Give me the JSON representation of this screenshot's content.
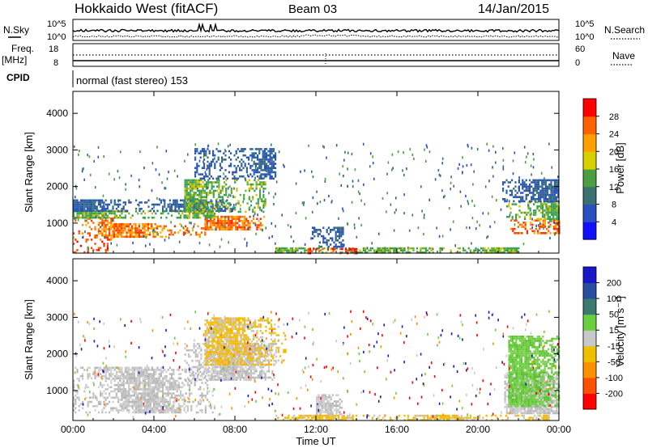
{
  "header": {
    "station": "Hokkaido West (fitACF)",
    "beam": "Beam 03",
    "date": "14/Jan/2015"
  },
  "noise_panel": {
    "left_label": "N.Sky",
    "right_label": "N.Search",
    "left_ticks": [
      "10^5",
      "10^0"
    ],
    "right_ticks": [
      "10^5",
      "10^0"
    ]
  },
  "freq_panel": {
    "left_label_line1": "Freq.",
    "left_label_line2": "[MHz]",
    "right_label": "Nave",
    "left_ticks": [
      "18",
      "8"
    ],
    "right_ticks": [
      "60",
      "0"
    ]
  },
  "cpid": {
    "label": "CPID",
    "value": "normal (fast stereo) 153"
  },
  "chart_data": [
    {
      "type": "heatmap",
      "name": "power",
      "ylabel": "Slant Range [km]",
      "yticks": [
        1000,
        2000,
        3000,
        4000
      ],
      "ylim": [
        180,
        4600
      ],
      "xlim_hours": [
        0,
        24
      ],
      "colorbar": {
        "label": "Power [dB]",
        "ticks": [
          4,
          8,
          12,
          16,
          20,
          24,
          28
        ],
        "range": [
          0,
          32
        ],
        "colors": [
          "#1010ff",
          "#2a4fc0",
          "#3a7070",
          "#4aa040",
          "#d8d000",
          "#ffa000",
          "#ff6000",
          "#ff0000"
        ]
      },
      "regions": [
        {
          "t0": 0.0,
          "t1": 1.7,
          "r0": 180,
          "r1": 520,
          "level": "red"
        },
        {
          "t0": 0.0,
          "t1": 2.0,
          "r0": 520,
          "r1": 1150,
          "level": "orange"
        },
        {
          "t0": 2.0,
          "t1": 6.5,
          "r0": 600,
          "r1": 1000,
          "level": "orange"
        },
        {
          "t0": 6.5,
          "t1": 9.5,
          "r0": 800,
          "r1": 1200,
          "level": "orange"
        },
        {
          "t0": 0.0,
          "t1": 7.0,
          "r0": 1150,
          "r1": 1350,
          "level": "green"
        },
        {
          "t0": 0.0,
          "t1": 8.0,
          "r0": 1350,
          "r1": 1650,
          "level": "blue"
        },
        {
          "t0": 5.5,
          "t1": 9.5,
          "r0": 1300,
          "r1": 2200,
          "level": "green"
        },
        {
          "t0": 6.0,
          "t1": 10.0,
          "r0": 2200,
          "r1": 3050,
          "level": "blue"
        },
        {
          "t0": 10.0,
          "t1": 22.0,
          "r0": 200,
          "r1": 340,
          "level": "green"
        },
        {
          "t0": 11.5,
          "t1": 14.0,
          "r0": 200,
          "r1": 320,
          "level": "red"
        },
        {
          "t0": 11.8,
          "t1": 13.3,
          "r0": 350,
          "r1": 900,
          "level": "blue"
        },
        {
          "t0": 21.6,
          "t1": 24.0,
          "r0": 700,
          "r1": 1100,
          "level": "orange"
        },
        {
          "t0": 21.4,
          "t1": 24.0,
          "r0": 1100,
          "r1": 1600,
          "level": "green"
        },
        {
          "t0": 21.2,
          "t1": 24.0,
          "r0": 1600,
          "r1": 2200,
          "level": "blue"
        }
      ]
    },
    {
      "type": "heatmap",
      "name": "velocity",
      "ylabel": "Slant Range [km]",
      "xlabel": "Time UT",
      "yticks": [
        1000,
        2000,
        3000,
        4000
      ],
      "ylim": [
        180,
        4600
      ],
      "xlim_hours": [
        0,
        24
      ],
      "xticks": [
        "00:00",
        "04:00",
        "08:00",
        "12:00",
        "16:00",
        "20:00",
        "00:00"
      ],
      "colorbar": {
        "label": "Velocity [m s⁻¹]",
        "ticks": [
          200,
          100,
          50,
          15,
          -15,
          -50,
          -100,
          -200
        ],
        "colors": [
          "#1818c8",
          "#2a4fa0",
          "#3a7a70",
          "#6ad040",
          "#c8c8c8",
          "#f0c000",
          "#ff9000",
          "#ff5000",
          "#ff0000"
        ]
      },
      "regions": [
        {
          "t0": 0.0,
          "t1": 7.0,
          "r0": 400,
          "r1": 1350,
          "level": "grey"
        },
        {
          "t0": 0.0,
          "t1": 8.0,
          "r0": 1350,
          "r1": 1650,
          "level": "grey"
        },
        {
          "t0": 5.5,
          "t1": 10.0,
          "r0": 1300,
          "r1": 2300,
          "level": "grey"
        },
        {
          "t0": 6.5,
          "t1": 10.5,
          "r0": 1700,
          "r1": 3000,
          "level": "yellow"
        },
        {
          "t0": 10.0,
          "t1": 23.5,
          "r0": 200,
          "r1": 340,
          "level": "yellow"
        },
        {
          "t0": 12.0,
          "t1": 13.3,
          "r0": 350,
          "r1": 900,
          "level": "grey"
        },
        {
          "t0": 21.3,
          "t1": 24.0,
          "r0": 400,
          "r1": 1500,
          "level": "grey"
        },
        {
          "t0": 21.5,
          "t1": 24.0,
          "r0": 600,
          "r1": 2500,
          "level": "green"
        }
      ]
    }
  ]
}
